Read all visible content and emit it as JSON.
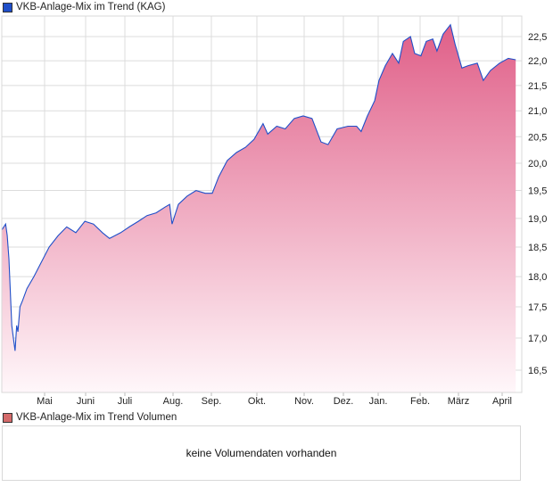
{
  "chart_data": {
    "type": "area",
    "title": "VKB-Anlage-Mix im Trend (KAG)",
    "line_color": "#1f4fc9",
    "fill_top": "#e05f88",
    "fill_bottom": "#fff7fa",
    "y_scale": "log",
    "ylim": [
      16.1,
      23.0
    ],
    "yticks": [
      16.5,
      17.0,
      17.5,
      18.0,
      18.5,
      19.0,
      19.5,
      20.0,
      20.5,
      21.0,
      21.5,
      22.0,
      22.5
    ],
    "ytick_labels": [
      "16,5",
      "17,0",
      "17,5",
      "18,0",
      "18,5",
      "19,0",
      "19,5",
      "20,0",
      "20,5",
      "21,0",
      "21,5",
      "22,0",
      "22,5"
    ],
    "x_unit": "months since 1 May",
    "xticks": [
      "Mai",
      "Juni",
      "Juli",
      "Aug.",
      "Sep.",
      "Okt.",
      "Nov.",
      "Dez.",
      "Jan.",
      "Feb.",
      "März",
      "April"
    ],
    "grid": true,
    "series": [
      {
        "name": "VKB-Anlage-Mix im Trend",
        "x": [
          -1.04,
          -0.95,
          -0.91,
          -0.87,
          -0.8,
          -0.76,
          -0.72,
          -0.68,
          -0.65,
          -0.6,
          -0.54,
          -0.43,
          -0.26,
          -0.11,
          0.11,
          0.33,
          0.54,
          0.76,
          0.98,
          1.2,
          1.43,
          1.61,
          1.89,
          2.09,
          2.28,
          2.46,
          2.65,
          2.83,
          2.93,
          2.98,
          3.14,
          3.37,
          3.6,
          3.84,
          4.02,
          4.16,
          4.35,
          4.55,
          4.75,
          4.94,
          5.13,
          5.23,
          5.42,
          5.6,
          5.79,
          5.98,
          6.2,
          6.43,
          6.61,
          6.84,
          7.13,
          7.38,
          7.51,
          7.69,
          7.9,
          8.02,
          8.17,
          8.34,
          8.49,
          8.6,
          8.77,
          8.87,
          9.02,
          9.16,
          9.33,
          9.44,
          9.6,
          9.79,
          9.91,
          10.08,
          10.22,
          10.43,
          10.57,
          10.73,
          10.94,
          11.14,
          11.31
        ],
        "y": [
          18.8,
          18.9,
          18.7,
          18.3,
          17.2,
          17.0,
          16.8,
          17.2,
          17.1,
          17.5,
          17.6,
          17.8,
          18.0,
          18.2,
          18.5,
          18.7,
          18.85,
          18.75,
          18.95,
          18.9,
          18.75,
          18.65,
          18.75,
          18.85,
          18.95,
          19.05,
          19.1,
          19.2,
          19.25,
          18.9,
          19.25,
          19.4,
          19.5,
          19.45,
          19.45,
          19.75,
          20.05,
          20.2,
          20.3,
          20.45,
          20.75,
          20.55,
          20.7,
          20.65,
          20.85,
          20.9,
          20.85,
          20.4,
          20.35,
          20.65,
          20.7,
          20.7,
          20.6,
          20.9,
          21.2,
          21.6,
          21.9,
          22.15,
          21.95,
          22.4,
          22.5,
          22.15,
          22.1,
          22.4,
          22.45,
          22.2,
          22.55,
          22.75,
          22.35,
          21.85,
          21.9,
          21.95,
          21.6,
          21.8,
          21.95,
          22.05,
          22.02
        ]
      }
    ]
  },
  "volume": {
    "legend": "VKB-Anlage-Mix im Trend Volumen",
    "legend_color": "#d46a6a",
    "message": "keine Volumendaten vorhanden"
  }
}
